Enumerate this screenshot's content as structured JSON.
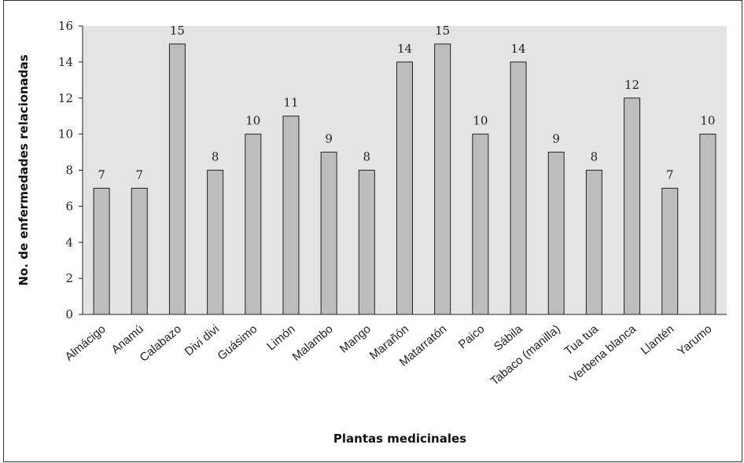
{
  "chart_data": {
    "type": "bar",
    "title": "",
    "xlabel": "Plantas medicinales",
    "ylabel": "No. de enfermedades relacionadas",
    "categories": [
      "Almácigo",
      "Anamú",
      "Calabazo",
      "Divi divi",
      "Guásimo",
      "Limón",
      "Malambo",
      "Mango",
      "Marañón",
      "Matarratón",
      "Paico",
      "Sábila",
      "Tabaco (manilla)",
      "Tua tua",
      "Verbena blanca",
      "Llantén",
      "Yarumo"
    ],
    "values": [
      7,
      7,
      15,
      8,
      10,
      11,
      9,
      8,
      14,
      15,
      10,
      14,
      9,
      8,
      12,
      7,
      10
    ],
    "data_labels": [
      "7",
      "7",
      "15",
      "8",
      "10",
      "11",
      "9",
      "8",
      "14",
      "15",
      "10",
      "14",
      "9",
      "8",
      "12",
      "7",
      "10"
    ],
    "ylim": [
      0,
      16
    ],
    "yticks": [
      0,
      2,
      4,
      6,
      8,
      10,
      12,
      14,
      16
    ],
    "ytick_labels": [
      "0",
      "2",
      "4",
      "6",
      "8",
      "10",
      "12",
      "14",
      "16"
    ],
    "grid": false,
    "legend": "none",
    "colors": {
      "plot_background": "#e4e4e4",
      "bar_fill": "#bdbdbd",
      "bar_stroke": "#222222",
      "axis": "#222222"
    }
  }
}
